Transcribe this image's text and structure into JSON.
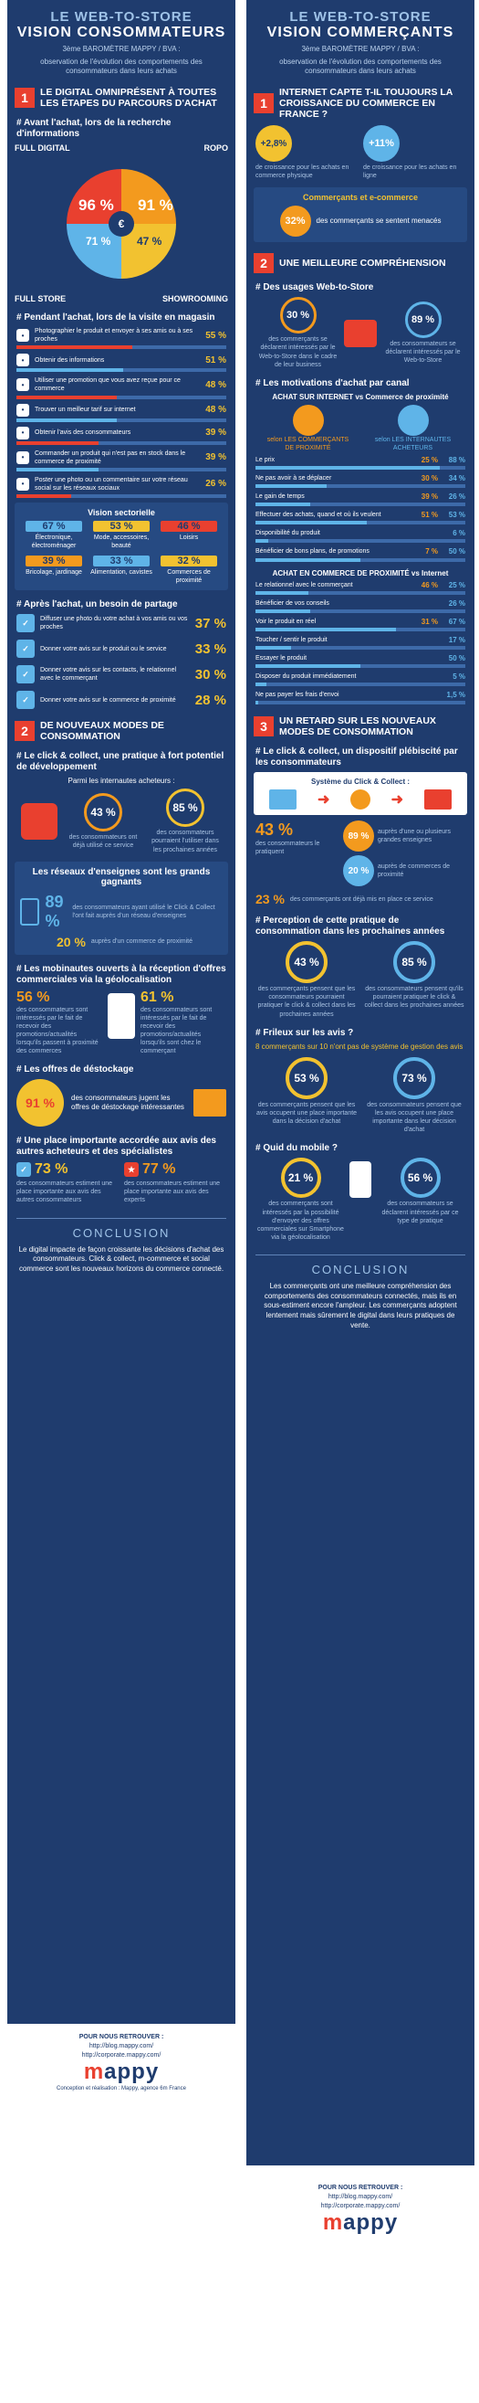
{
  "left": {
    "t1": "LE WEB-TO-STORE",
    "t2": "VISION CONSOMMATEURS",
    "sub1": "3ème BAROMÈTRE MAPPY / BVA :",
    "sub2": "observation de l'évolution des comportements des consommateurs dans leurs achats",
    "sec1_num": "1",
    "sec1_title": "LE DIGITAL OMNIPRÉSENT À TOUTES LES ÉTAPES DU PARCOURS D'ACHAT",
    "avant_title": "# Avant l'achat, lors de la recherche d'informations",
    "full_digital": "FULL DIGITAL",
    "ropo": "ROPO",
    "full_store": "FULL STORE",
    "showrooming": "SHOWROOMING",
    "pie_values": [
      "96 %",
      "91 %",
      "71 %",
      "47 %"
    ],
    "pendant_title": "# Pendant l'achat, lors de la visite en magasin",
    "pendant_rows": [
      {
        "label": "Photographier le produit et envoyer à ses amis ou à ses proches",
        "value": "55 %",
        "pct": 55
      },
      {
        "label": "Obtenir des informations",
        "value": "51 %",
        "pct": 51
      },
      {
        "label": "Utiliser une promotion que vous avez reçue pour ce commerce",
        "value": "48 %",
        "pct": 48
      },
      {
        "label": "Trouver un meilleur tarif sur internet",
        "value": "48 %",
        "pct": 48
      },
      {
        "label": "Obtenir l'avis des consommateurs",
        "value": "39 %",
        "pct": 39
      },
      {
        "label": "Commander un produit qui n'est pas en stock dans le commerce de proximité",
        "value": "39 %",
        "pct": 39
      },
      {
        "label": "Poster une photo ou un commentaire sur votre réseau social sur les réseaux sociaux",
        "value": "26 %",
        "pct": 26
      }
    ],
    "sector_title": "Vision sectorielle",
    "sectors": [
      {
        "value": "67 %",
        "label": "Électronique, électroménager"
      },
      {
        "value": "53 %",
        "label": "Mode, accessoires, beauté"
      },
      {
        "value": "46 %",
        "label": "Loisirs"
      },
      {
        "value": "39 %",
        "label": "Bricolage, jardinage"
      },
      {
        "value": "33 %",
        "label": "Alimentation, cavistes"
      },
      {
        "value": "32 %",
        "label": "Commerces de proximité"
      }
    ],
    "apres_title": "# Après l'achat, un besoin de partage",
    "apres_rows": [
      {
        "label": "Diffuser une photo du votre achat à vos amis ou vos proches",
        "value": "37 %"
      },
      {
        "label": "Donner votre avis sur le produit ou le service",
        "value": "33 %"
      },
      {
        "label": "Donner votre avis sur les contacts, le relationnel avec le commerçant",
        "value": "30 %"
      },
      {
        "label": "Donner votre avis sur le commerce de proximité",
        "value": "28 %"
      }
    ],
    "sec2_num": "2",
    "sec2_title": "DE NOUVEAUX MODES DE CONSOMMATION",
    "cc_title": "# Le click & collect, une pratique à fort potentiel de développement",
    "cc_sub": "Parmi les internautes acheteurs :",
    "cc_a": "43 %",
    "cc_a_label": "des consommateurs ont déjà utilisé ce service",
    "cc_b": "85 %",
    "cc_b_label": "des consommateurs pourraient l'utiliser dans les prochaines années",
    "res_title": "Les réseaux d'enseignes sont les grands gagnants",
    "res_a": "89 %",
    "res_a_label": "des consommateurs ayant utilisé le Click & Collect l'ont fait auprès d'un réseau d'enseignes",
    "res_b": "20 %",
    "res_b_label": "auprès d'un commerce de proximité",
    "mob_title": "# Les mobinautes ouverts à la réception d'offres commerciales via la géolocalisation",
    "mob_a": "56 %",
    "mob_a_label": "des consommateurs sont intéressés par le fait de recevoir des promotions/actualités lorsqu'ils passent à proximité des commerces",
    "mob_b": "61 %",
    "mob_b_label": "des consommateurs sont intéressés par le fait de recevoir des promotions/actualités lorsqu'ils sont chez le commerçant",
    "dest_title": "# Les offres de déstockage",
    "dest_val": "91 %",
    "dest_label": "des consommateurs jugent les offres de déstockage intéressantes",
    "avis_title": "# Une place importante accordée aux avis des autres acheteurs et des spécialistes",
    "avis_a": "73 %",
    "avis_a_label": "des consommateurs estiment une place importante aux avis des autres consommateurs",
    "avis_b": "77 %",
    "avis_b_label": "des consommateurs estiment une place importante aux avis des experts",
    "concl_title": "CONCLUSION",
    "concl_text": "Le digital impacte de façon croissante les décisions d'achat des consommateurs. Click & collect, m-commerce et social commerce sont les nouveaux horizons du commerce connecté.",
    "retrouver": "POUR NOUS RETROUVER :",
    "url1": "http://blog.mappy.com/",
    "url2": "http://corporate.mappy.com/",
    "credit": "Conception et réalisation : Mappy, agence 6m France"
  },
  "right": {
    "t1": "LE WEB-TO-STORE",
    "t2": "VISION COMMERÇANTS",
    "sub1": "3ème BAROMÈTRE MAPPY / BVA :",
    "sub2": "observation de l'évolution des comportements des consommateurs dans leurs achats",
    "sec1_num": "1",
    "sec1_title": "INTERNET CAPTE T-IL TOUJOURS LA CROISSANCE DU COMMERCE EN FRANCE ?",
    "g1": "+2,8%",
    "g1_label": "de croissance pour les achats en commerce physique",
    "g2": "+11%",
    "g2_label": "de croissance pour les achats en ligne",
    "menace_title": "Commerçants et e-commerce",
    "menace_val": "32%",
    "menace_label": "des commerçants se sentent menacés",
    "sec2_num": "2",
    "sec2_title": "UNE MEILLEURE COMPRÉHENSION",
    "usage_title": "# Des usages Web-to-Store",
    "usage_a": "30 %",
    "usage_a_label": "des commerçants se déclarent intéressés par le Web-to-Store dans le cadre de leur business",
    "usage_b": "89 %",
    "usage_b_label": "des consommateurs se déclarent intéressés par le Web-to-Store",
    "motiv_title": "# Les motivations d'achat par canal",
    "motiv_sub": "ACHAT SUR INTERNET vs Commerce de proximité",
    "who_a": "selon LES COMMERÇANTS DE PROXIMITÉ",
    "who_b": "selon LES INTERNAUTES ACHETEURS",
    "motiv_rows": [
      {
        "label": "Le prix",
        "a": "25 %",
        "b": "88 %"
      },
      {
        "label": "Ne pas avoir à se déplacer",
        "a": "30 %",
        "b": "34 %"
      },
      {
        "label": "Le gain de temps",
        "a": "39 %",
        "b": "26 %"
      },
      {
        "label": "Effectuer des achats, quand et où ils veulent",
        "a": "51 %",
        "b": "53 %"
      },
      {
        "label": "Disponibilité du produit",
        "a": "",
        "b": "6 %"
      },
      {
        "label": "Bénéficier de bons plans, de promotions",
        "a": "7 %",
        "b": "50 %"
      }
    ],
    "prox_title": "ACHAT EN COMMERCE DE PROXIMITÉ vs Internet",
    "prox_rows": [
      {
        "label": "Le relationnel avec le commerçant",
        "a": "46 %",
        "b": "25 %"
      },
      {
        "label": "Bénéficier de vos conseils",
        "a": "",
        "b": "26 %"
      },
      {
        "label": "Voir le produit en réel",
        "a": "31 %",
        "b": "67 %"
      },
      {
        "label": "Toucher / sentir le produit",
        "a": "",
        "b": "17 %"
      },
      {
        "label": "Essayer le produit",
        "a": "",
        "b": "50 %"
      },
      {
        "label": "Disposer du produit immédiatement",
        "a": "",
        "b": "5 %"
      },
      {
        "label": "Ne pas payer les frais d'envoi",
        "a": "",
        "b": "1,5 %"
      }
    ],
    "sec3_num": "3",
    "sec3_title": "UN RETARD SUR LES NOUVEAUX MODES DE CONSOMMATION",
    "cc_title": "# Le click & collect, un dispositif plébiscité par les consommateurs",
    "cc_system": "Système du Click & Collect :",
    "cc_a": "43 %",
    "cc_a_label": "des consommateurs le pratiquent",
    "cc_b": "89 %",
    "cc_b_label": "auprès d'une ou plusieurs grandes enseignes",
    "cc_c": "20 %",
    "cc_c_label": "auprès de commerces de proximité",
    "cc_d": "23 %",
    "cc_d_label": "des commerçants ont déjà mis en place ce service",
    "perc_title": "# Perception de cette pratique de consommation dans les prochaines années",
    "perc_a": "43 %",
    "perc_a_label": "des commerçants pensent que les consommateurs pourraient pratiquer le click & collect dans les prochaines années",
    "perc_b": "85 %",
    "perc_b_label": "des consommateurs pensent qu'ils pourraient pratiquer le click & collect dans les prochaines années",
    "avis_title": "# Frileux sur les avis ?",
    "avis_sub": "8 commerçants sur 10 n'ont pas de système de gestion des avis",
    "avis_a": "53 %",
    "avis_a_label": "des commerçants pensent que les avis occupent une place importante dans la décision d'achat",
    "avis_b": "73 %",
    "avis_b_label": "des consommateurs pensent que les avis occupent une place importante dans leur décision d'achat",
    "mob_title": "# Quid du mobile ?",
    "mob_a": "21 %",
    "mob_a_label": "des commerçants sont intéressés par la possibilité d'envoyer des offres commerciales sur Smartphone via la géolocalisation",
    "mob_b": "56 %",
    "mob_b_label": "des consommateurs se déclarent intéressés par ce type de pratique",
    "concl_title": "CONCLUSION",
    "concl_text": "Les commerçants ont une meilleure compréhension des comportements des consommateurs connectés, mais ils en sous-estiment encore l'ampleur. Les commerçants adoptent lentement mais sûrement le digital dans leurs pratiques de vente.",
    "retrouver": "POUR NOUS RETROUVER :",
    "url1": "http://blog.mappy.com/",
    "url2": "http://corporate.mappy.com/"
  },
  "logo_a": "m",
  "logo_b": "appy",
  "colors": {
    "navy": "#1f3c6e",
    "red": "#e9402f",
    "yellow": "#f2c230",
    "orange": "#f39a1e",
    "lightblue": "#5fb4e8"
  },
  "chart_data": [
    {
      "type": "bar",
      "title": "Pendant l'achat, lors de la visite en magasin",
      "categories": [
        "Photographier le produit",
        "Obtenir des informations",
        "Utiliser une promotion",
        "Trouver un meilleur tarif sur internet",
        "Obtenir l'avis des consommateurs",
        "Commander un produit qui n'est pas en stock",
        "Poster une photo ou un commentaire"
      ],
      "values": [
        55,
        51,
        48,
        48,
        39,
        39,
        26
      ]
    },
    {
      "type": "bar",
      "title": "Vision sectorielle",
      "categories": [
        "Électronique, électroménager",
        "Mode, accessoires, beauté",
        "Loisirs",
        "Bricolage, jardinage",
        "Alimentation, cavistes",
        "Commerces de proximité"
      ],
      "values": [
        67,
        53,
        46,
        39,
        33,
        32
      ]
    },
    {
      "type": "bar",
      "title": "Après l'achat, un besoin de partage",
      "categories": [
        "Diffuser une photo",
        "Avis sur le produit",
        "Avis sur le relationnel",
        "Avis sur le commerce"
      ],
      "values": [
        37,
        33,
        30,
        28
      ]
    }
  ]
}
